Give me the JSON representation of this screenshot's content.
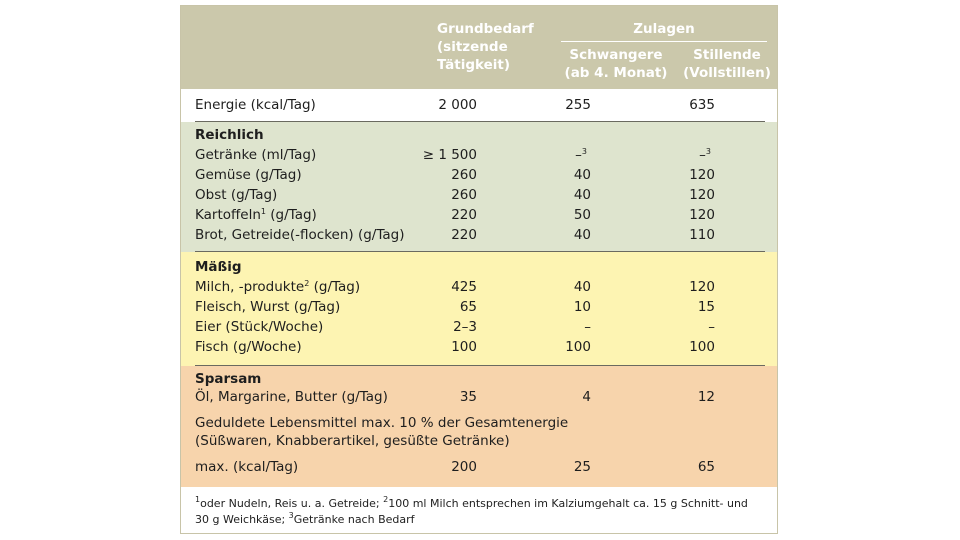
{
  "header": {
    "col1_l1": "Grundbedarf",
    "col1_l2": "(sitzende",
    "col1_l3": "Tätigkeit)",
    "group": "Zulagen",
    "col2_l1": "Schwangere",
    "col2_l2": "(ab 4. Monat)",
    "col3_l1": "Stillende",
    "col3_l2": "(Vollstillen)"
  },
  "energy": {
    "label": "Energie (kcal/Tag)",
    "v1": "2 000",
    "v2": "255",
    "v3": "635"
  },
  "reichlich": {
    "title": "Reichlich",
    "rows": [
      {
        "label": "Getränke (ml/Tag)",
        "v1": "≥ 1 500",
        "v2": "–",
        "v3": "–"
      },
      {
        "label": "Gemüse (g/Tag)",
        "v1": "260",
        "v2": "40",
        "v3": "120"
      },
      {
        "label": "Obst (g/Tag)",
        "v1": "260",
        "v2": "40",
        "v3": "120"
      },
      {
        "label": "Kartoffeln",
        "label_suffix": " (g/Tag)",
        "v1": "220",
        "v2": "50",
        "v3": "120"
      },
      {
        "label": "Brot, Getreide(-flocken) (g/Tag)",
        "v1": "220",
        "v2": "40",
        "v3": "110"
      }
    ]
  },
  "massig": {
    "title": "Mäßig",
    "rows": [
      {
        "label": "Milch, -produkte",
        "label_suffix": " (g/Tag)",
        "v1": "425",
        "v2": "40",
        "v3": "120"
      },
      {
        "label": "Fleisch, Wurst (g/Tag)",
        "v1": "65",
        "v2": "10",
        "v3": "15"
      },
      {
        "label": "Eier (Stück/Woche)",
        "v1": "2–3",
        "v2": "–",
        "v3": "–"
      },
      {
        "label": "Fisch (g/Woche)",
        "v1": "100",
        "v2": "100",
        "v3": "100"
      }
    ]
  },
  "sparsam": {
    "title": "Sparsam",
    "oil": {
      "label": "Öl, Margarine, Butter (g/Tag)",
      "v1": "35",
      "v2": "4",
      "v3": "12"
    },
    "tolerated_l1": "Geduldete Lebensmittel max. 10 % der Gesamtenergie",
    "tolerated_l2": "(Süßwaren, Knabberartikel, gesüßte Getränke)",
    "max": {
      "label": "max. (kcal/Tag)",
      "v1": "200",
      "v2": "25",
      "v3": "65"
    }
  },
  "footnote": {
    "mark1": "1",
    "text1": "oder Nudeln, Reis u. a. Getreide; ",
    "mark2": "2",
    "text2": "100 ml Milch entsprechen im Kalziumgehalt ca. 15 g Schnitt- und",
    "line2a": "30 g Weichkäse; ",
    "mark3": "3",
    "text3": "Getränke nach Bedarf"
  },
  "sup_marks": {
    "kartoffeln": "1",
    "milch": "2",
    "getraenke_v2": "3",
    "getraenke_v3": "3"
  },
  "colors": {
    "header": "#cbc8ab",
    "reichlich": "#dee4ce",
    "massig": "#fdf4b2",
    "sparsam": "#f7d4ac"
  }
}
